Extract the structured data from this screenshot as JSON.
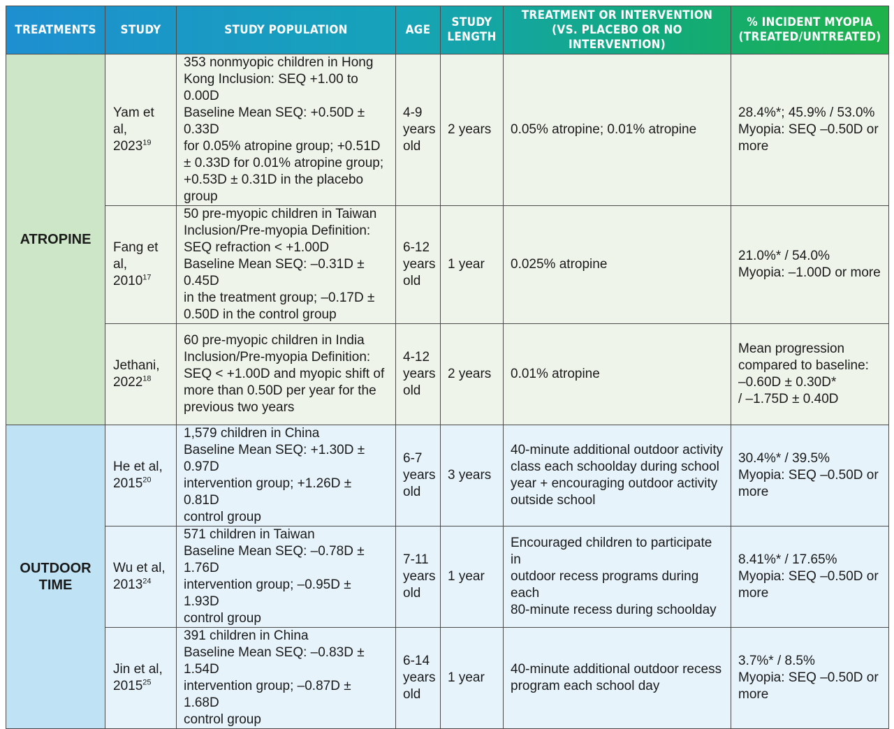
{
  "headers": {
    "treatments": "TREATMENTS",
    "study": "STUDY",
    "population": "STUDY POPULATION",
    "age": "AGE",
    "length": "STUDY\nLENGTH",
    "intervention": "TREATMENT OR INTERVENTION\n(VS. PLACEBO OR NO INTERVENTION)",
    "incidence": "% INCIDENT MYOPIA\n(TREATED/UNTREATED)"
  },
  "groups": [
    {
      "category": "ATROPINE",
      "rows": [
        {
          "study": "Yam et al,\n2023",
          "ref": "19",
          "population": "353 nonmyopic children in Hong\nKong Inclusion: SEQ +1.00 to 0.00D\nBaseline Mean SEQ: +0.50D ± 0.33D\nfor 0.05% atropine group; +0.51D\n± 0.33D for 0.01% atropine group;\n+0.53D ± 0.31D in the placebo group",
          "age": "4-9\nyears\nold",
          "length": "2 years",
          "intervention": "0.05% atropine; 0.01% atropine",
          "incidence": "28.4%*; 45.9% / 53.0%\nMyopia: SEQ –0.50D or\nmore"
        },
        {
          "study": "Fang et al,\n2010",
          "ref": "17",
          "population": "50 pre-myopic children in Taiwan\nInclusion/Pre-myopia Definition:\nSEQ refraction < +1.00D\nBaseline Mean SEQ: –0.31D ± 0.45D\nin the treatment group; –0.17D ±\n0.50D in the control group",
          "age": "6-12\nyears\nold",
          "length": "1 year",
          "intervention": "0.025% atropine",
          "incidence": "21.0%* / 54.0%\nMyopia: –1.00D or more"
        },
        {
          "study": "Jethani,\n2022",
          "ref": "18",
          "population": "60 pre-myopic children in India\nInclusion/Pre-myopia Definition:\nSEQ < +1.00D and myopic shift of\nmore than 0.50D per year for the\nprevious two years",
          "age": "4-12\nyears\nold",
          "length": "2 years",
          "intervention": "0.01% atropine",
          "incidence": "Mean progression\ncompared to baseline:\n–0.60D ± 0.30D*\n/ –1.75D ± 0.40D"
        }
      ]
    },
    {
      "category": "OUTDOOR\nTIME",
      "rows": [
        {
          "study": "He et al,\n2015",
          "ref": "20",
          "population": "1,579 children in China\nBaseline Mean SEQ: +1.30D ± 0.97D\nintervention group; +1.26D ± 0.81D\ncontrol group",
          "age": "6-7\nyears\nold",
          "length": "3 years",
          "intervention": "40-minute additional outdoor activity\nclass each schoolday during school\nyear + encouraging outdoor activity\noutside school",
          "incidence": "30.4%* / 39.5%\nMyopia: SEQ –0.50D or\nmore"
        },
        {
          "study": "Wu et al,\n2013",
          "ref": "24",
          "population": "571 children in Taiwan\nBaseline Mean SEQ: –0.78D ± 1.76D\nintervention group; –0.95D ± 1.93D\ncontrol group",
          "age": "7-11\nyears\nold",
          "length": "1 year",
          "intervention": "Encouraged children to participate in\noutdoor recess programs during each\n80-minute recess during schoolday",
          "incidence": "8.41%* / 17.65%\nMyopia: SEQ –0.50D or\nmore"
        },
        {
          "study": "Jin et al,\n2015",
          "ref": "25",
          "population": "391 children in China\nBaseline Mean SEQ: –0.83D ± 1.54D\nintervention group; –0.87D ± 1.68D\ncontrol group",
          "age": "6-14\nyears\nold",
          "length": "1 year",
          "intervention": "40-minute additional outdoor recess\nprogram each school day",
          "incidence": "3.7%* / 8.5%\nMyopia: SEQ –0.50D or\nmore"
        }
      ]
    }
  ]
}
